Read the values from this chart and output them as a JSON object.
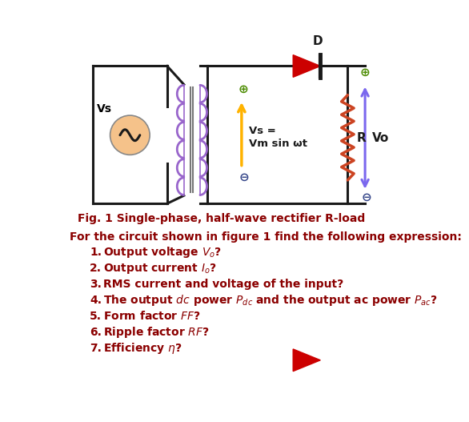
{
  "fig_caption": "Fig. 1 Single-phase, half-wave rectifier R-load",
  "intro_text": "For the circuit shown in figure 1 find the following expression:",
  "items": [
    [
      "Output voltage ",
      "italic",
      "V",
      "o",
      "?"
    ],
    [
      "Output current ",
      "italic",
      "I",
      "o",
      "?"
    ],
    [
      "RMS current and voltage of the input?"
    ],
    [
      "The output ",
      "italic_dc",
      " power ",
      "italic",
      "P",
      "dc",
      " and the output ac power ",
      "italic",
      "P",
      "ac",
      "?"
    ],
    [
      "Form factor ",
      "italic",
      "FF",
      "",
      "?"
    ],
    [
      "Ripple factor ",
      "italic",
      "RF",
      "",
      "?"
    ],
    [
      "Efficiency ",
      "italic_eta",
      "?"
    ]
  ],
  "bg_color": "#ffffff",
  "text_color": "#8B0000",
  "circuit_line_color": "#1a1a1a",
  "transformer_color": "#9966CC",
  "vs_arrow_color": "#FFB300",
  "diode_color": "#CC0000",
  "resistor_color": "#CC4422",
  "vo_arrow_color": "#7B68EE",
  "plus_color": "#4B8B00",
  "minus_color": "#334488"
}
